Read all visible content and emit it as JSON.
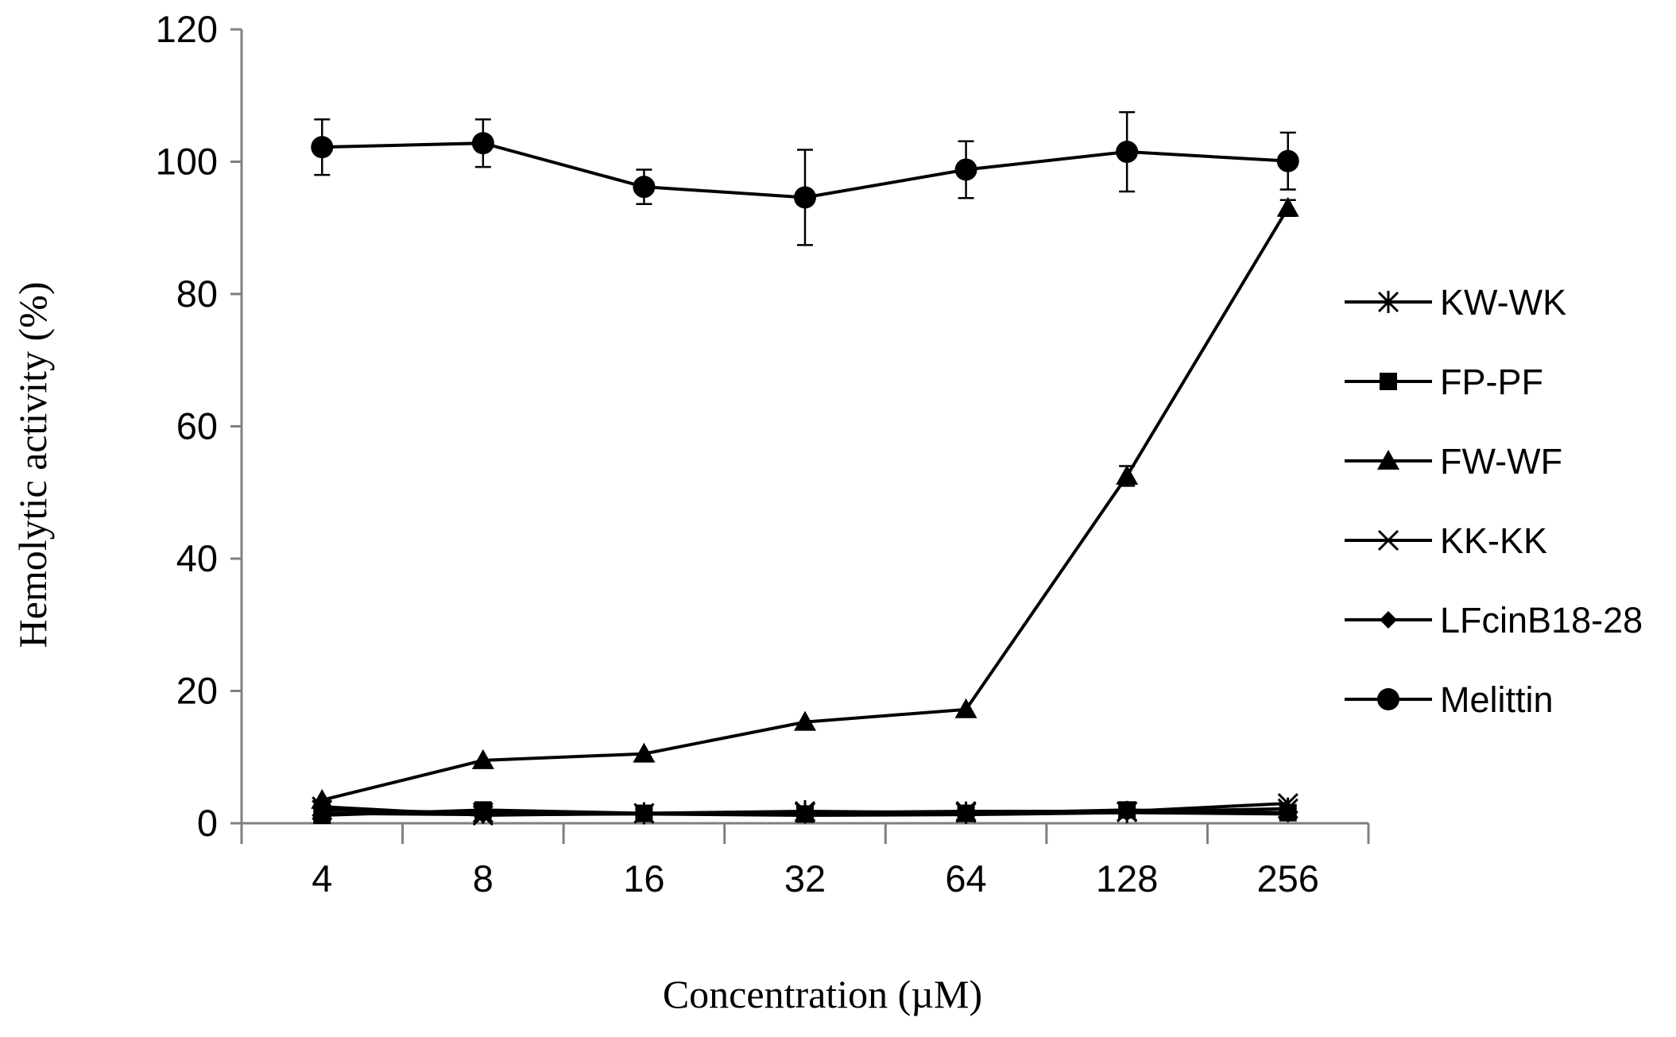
{
  "chart_data": {
    "type": "line",
    "title": "",
    "xlabel": "Concentration (µM)",
    "ylabel": "Hemolytic activity (%)",
    "categories": [
      "4",
      "8",
      "16",
      "32",
      "64",
      "128",
      "256"
    ],
    "ylim": [
      0,
      120
    ],
    "yticks": [
      0,
      20,
      40,
      60,
      80,
      100,
      120
    ],
    "grid": false,
    "legend_position": "right",
    "series": [
      {
        "name": "KW-WK",
        "marker": "asterisk",
        "color": "#000000",
        "values": [
          2.0,
          1.6,
          1.5,
          1.8,
          1.6,
          1.7,
          2.2
        ],
        "errors": [
          0,
          0,
          0,
          0,
          0,
          0,
          0
        ]
      },
      {
        "name": "FP-PF",
        "marker": "square",
        "color": "#000000",
        "values": [
          1.2,
          2.0,
          1.5,
          1.4,
          1.5,
          2.0,
          1.6
        ],
        "errors": [
          0,
          0,
          0,
          0,
          0,
          0,
          0
        ]
      },
      {
        "name": "FW-WF",
        "marker": "triangle",
        "color": "#000000",
        "values": [
          3.5,
          9.5,
          10.5,
          15.3,
          17.2,
          52.5,
          93.0
        ],
        "errors": [
          0,
          0,
          0,
          0,
          0,
          1.5,
          1.2
        ]
      },
      {
        "name": "KK-KK",
        "marker": "cross",
        "color": "#000000",
        "values": [
          2.5,
          1.2,
          1.5,
          1.6,
          1.8,
          1.8,
          3.0
        ],
        "errors": [
          0,
          0,
          0,
          0,
          0,
          0,
          0
        ]
      },
      {
        "name": "LFcinB18-28",
        "marker": "diamond",
        "color": "#000000",
        "values": [
          1.5,
          1.3,
          1.4,
          1.2,
          1.3,
          1.6,
          1.4
        ],
        "errors": [
          0,
          0,
          0,
          0,
          0,
          0,
          0
        ]
      },
      {
        "name": "Melittin",
        "marker": "circle",
        "color": "#000000",
        "values": [
          102.2,
          102.8,
          96.2,
          94.6,
          98.8,
          101.5,
          100.1
        ],
        "errors": [
          4.2,
          3.6,
          2.6,
          7.2,
          4.3,
          6.0,
          4.3
        ]
      }
    ]
  }
}
